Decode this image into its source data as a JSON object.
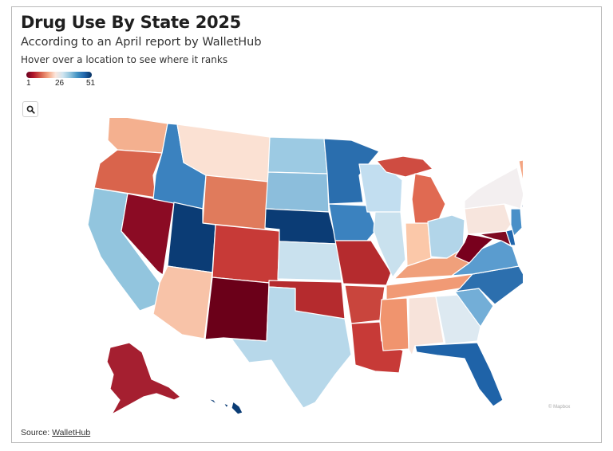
{
  "title": "Drug Use By State 2025",
  "subtitle": "According to an April report by WalletHub",
  "hint": "Hover over a location to see where it ranks",
  "legend": {
    "min_label": "1",
    "mid_label": "26",
    "max_label": "51",
    "colors": [
      "#67001f",
      "#b2182b",
      "#d6604d",
      "#f4a582",
      "#fbe6dc",
      "#d1e5f0",
      "#92c5de",
      "#4393c3",
      "#2166ac",
      "#053061"
    ]
  },
  "search_button": {
    "icon": "search-icon"
  },
  "source": {
    "label": "Source: ",
    "link_text": "WalletHub"
  },
  "attribution": "© Mapbox",
  "state_colors": {
    "washington": "#f4b08f",
    "oregon": "#d9644c",
    "california": "#92c5de",
    "nevada": "#8b0b24",
    "idaho": "#3b82bf",
    "montana": "#fbe1d3",
    "wyoming": "#e07b5c",
    "utah": "#0b3c75",
    "arizona": "#f8c3a8",
    "colorado": "#c73a37",
    "new_mexico": "#6b0019",
    "north_dakota": "#9ccae3",
    "south_dakota": "#8cbedc",
    "nebraska": "#0b3c75",
    "kansas": "#c9e1ee",
    "oklahoma": "#b52b2e",
    "texas": "#b7d8ea",
    "minnesota": "#2a6eae",
    "iowa": "#3b82bf",
    "missouri": "#b52b2e",
    "arkansas": "#c9453d",
    "louisiana": "#c73a37",
    "wisconsin": "#c2def0",
    "illinois": "#c9e1ee",
    "michigan": "#e06a52",
    "michigan_up": "#cf4c41",
    "indiana": "#fbc8a9",
    "ohio": "#b2d5e9",
    "kentucky": "#f0a07b",
    "tennessee": "#f19a75",
    "mississippi": "#f0946e",
    "alabama": "#f7e3da",
    "georgia": "#dde9f1",
    "florida": "#1f63a8",
    "south_carolina": "#73aed7",
    "north_carolina": "#2c6fae",
    "virginia": "#5a9ccf",
    "west_virginia": "#78001d",
    "pennsylvania": "#f7e5dd",
    "new_york": "#f3eff0",
    "maryland": "#7f0a22",
    "delaware": "#2166ac",
    "new_jersey": "#4a90c8",
    "vermont": "#f4a582",
    "new_hampshire": "#5d9bd0",
    "maine": "#fae3d6",
    "massachusetts": "#fbe6dc",
    "connecticut": "#0b3c75",
    "alaska": "#a51f30",
    "hawaii": "#0b3c75"
  }
}
